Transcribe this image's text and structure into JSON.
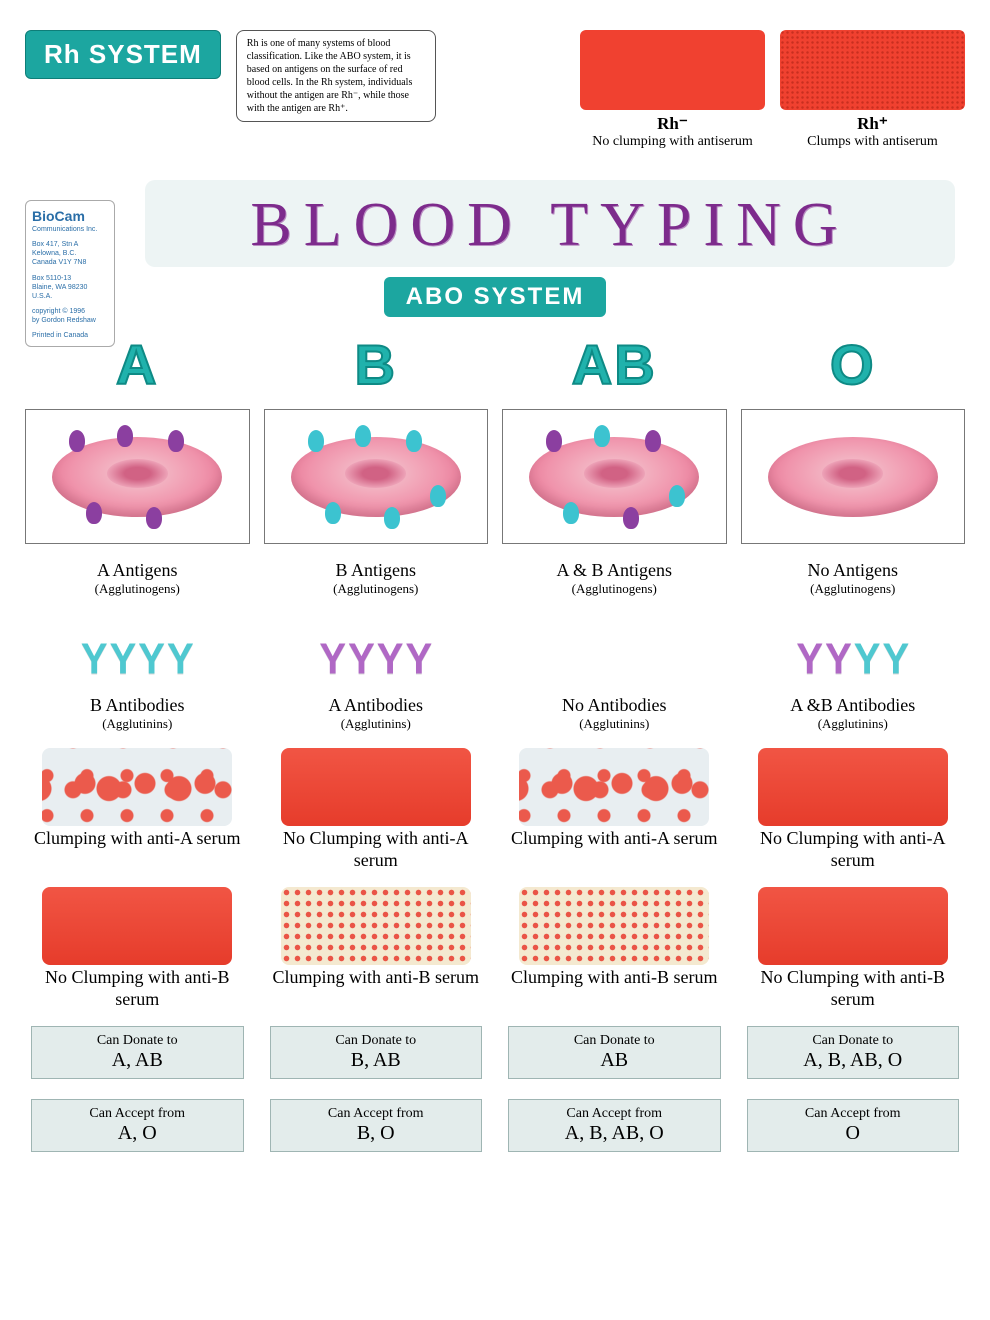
{
  "colors": {
    "teal": "#1ca6a0",
    "title_purple": "#7d2b8c",
    "letter_teal": "#20b2ac",
    "antigen_a": "#8b3fa0",
    "antigen_b": "#3cc3d0",
    "ab_teal": "#4fc8d0",
    "ab_purple": "#b068c5",
    "red_swatch": "#f04130",
    "title_bg": "#edf4f4",
    "tag_bg": "#e3eceb"
  },
  "rh": {
    "badge": "Rh SYSTEM",
    "description": "Rh is one of many systems of blood classification. Like the ABO system, it is based on antigens on the surface of red blood cells. In the Rh system, individuals without the antigen are Rh⁻, while those with the antigen are Rh⁺.",
    "neg": {
      "label": "Rh⁻",
      "sub": "No clumping with antiserum"
    },
    "pos": {
      "label": "Rh⁺",
      "sub": "Clumps with antiserum"
    }
  },
  "logo": {
    "brand": "BioCam",
    "line1": "Communications Inc.",
    "addr1": "Box 417, Stn A\nKelowna, B.C.\nCanada V1Y 7N8",
    "addr2": "Box 5110-13\nBlaine, WA 98230\nU.S.A.",
    "copy": "copyright © 1996\nby Gordon Redshaw",
    "printed": "Printed in Canada"
  },
  "title": "BLOOD TYPING",
  "abo_badge": "ABO SYSTEM",
  "types": [
    {
      "letter": "A",
      "antigen_title": "A Antigens",
      "antigen_sub": "(Agglutinogens)",
      "antigens": [
        "a",
        "a",
        "a",
        "a",
        "a"
      ],
      "antibody_title": "B Antibodies",
      "antibody_sub": "(Agglutinins)",
      "antibody_glyphs": [
        "teal",
        "teal",
        "teal",
        "teal"
      ],
      "serumA_style": "clump-a",
      "serumA_label": "Clumping with anti-A serum",
      "serumB_style": "solid-red",
      "serumB_label": "No Clumping with anti-B serum",
      "donate_label": "Can Donate to",
      "donate": "A, AB",
      "accept_label": "Can Accept  from",
      "accept": "A, O"
    },
    {
      "letter": "B",
      "antigen_title": "B Antigens",
      "antigen_sub": "(Agglutinogens)",
      "antigens": [
        "b",
        "b",
        "b",
        "b",
        "b",
        "b"
      ],
      "antibody_title": "A Antibodies",
      "antibody_sub": "(Agglutinins)",
      "antibody_glyphs": [
        "purple",
        "purple",
        "purple",
        "purple"
      ],
      "serumA_style": "solid-red",
      "serumA_label": "No Clumping with anti-A serum",
      "serumB_style": "clump-b",
      "serumB_label": "Clumping with anti-B serum",
      "donate_label": "Can Donate to",
      "donate": "B, AB",
      "accept_label": "Can Accept  from",
      "accept": "B, O"
    },
    {
      "letter": "AB",
      "antigen_title": "A & B Antigens",
      "antigen_sub": "(Agglutinogens)",
      "antigens": [
        "a",
        "b",
        "a",
        "b",
        "a",
        "b"
      ],
      "antibody_title": "No Antibodies",
      "antibody_sub": "(Agglutinins)",
      "antibody_glyphs": [],
      "serumA_style": "clump-a",
      "serumA_label": "Clumping with anti-A serum",
      "serumB_style": "clump-b",
      "serumB_label": "Clumping with anti-B serum",
      "donate_label": "Can Donate to",
      "donate": "AB",
      "accept_label": "Can Accept  from",
      "accept": "A, B, AB, O"
    },
    {
      "letter": "O",
      "antigen_title": "No Antigens",
      "antigen_sub": "(Agglutinogens)",
      "antigens": [],
      "antibody_title": "A &B Antibodies",
      "antibody_sub": "(Agglutinins)",
      "antibody_glyphs": [
        "purple",
        "purple",
        "teal",
        "teal"
      ],
      "serumA_style": "solid-red",
      "serumA_label": "No Clumping with anti-A serum",
      "serumB_style": "solid-red",
      "serumB_label": "No Clumping with anti-B serum",
      "donate_label": "Can Donate to",
      "donate": "A, B, AB, O",
      "accept_label": "Can Accept  from",
      "accept": "O"
    }
  ]
}
